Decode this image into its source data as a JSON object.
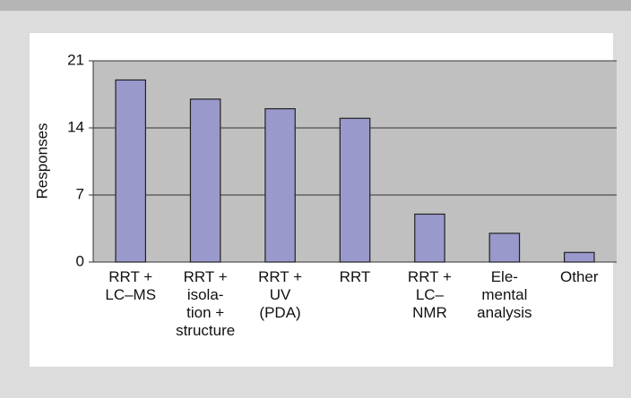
{
  "chart_data": {
    "type": "bar",
    "y_label": "Responses",
    "categories": [
      "RRT +\nLC–MS",
      "RRT +\nisola-\ntion +\nstructure",
      "RRT +\nUV\n(PDA)",
      "RRT",
      "RRT +\nLC–\nNMR",
      "Ele-\nmental\nanalysis",
      "Other"
    ],
    "values": [
      19,
      17,
      16,
      15,
      5,
      3,
      1
    ],
    "color": "#9999cc",
    "ylim": [
      0,
      21
    ],
    "yticks": [
      0,
      7,
      14,
      21
    ],
    "grid": true
  }
}
